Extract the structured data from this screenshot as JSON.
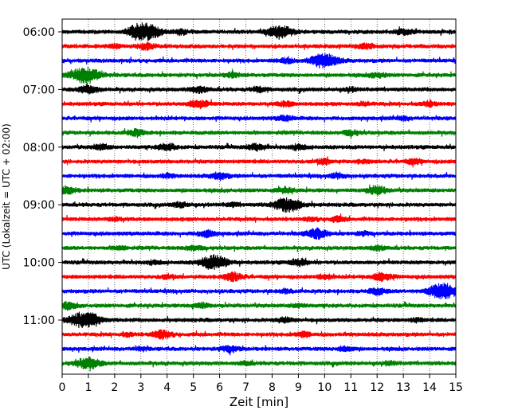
{
  "chart_data": {
    "type": "line",
    "title": "",
    "xlabel": "Zeit  [min]",
    "ylabel": "UTC (Lokalzeit = UTC + 02:00)",
    "xlim": [
      0,
      15
    ],
    "x_ticks": [
      0,
      1,
      2,
      3,
      4,
      5,
      6,
      7,
      8,
      9,
      10,
      11,
      12,
      13,
      14,
      15
    ],
    "y_tick_labels": [
      "06:00",
      "07:00",
      "08:00",
      "09:00",
      "10:00",
      "11:00"
    ],
    "grid": "vertical dotted lines at every minute",
    "legend": "none",
    "series_colors": [
      "#000000",
      "#ff0000",
      "#0000ff",
      "#008000"
    ],
    "traces": [
      {
        "start": "06:00",
        "events": [
          [
            3.2,
            1.0
          ],
          [
            8.3,
            0.8
          ],
          [
            2.8,
            0.4
          ],
          [
            4.5,
            0.3
          ],
          [
            13.0,
            0.3
          ]
        ]
      },
      {
        "start": "06:15",
        "events": [
          [
            3.2,
            0.4
          ],
          [
            11.5,
            0.3
          ],
          [
            2.0,
            0.2
          ]
        ]
      },
      {
        "start": "06:30",
        "events": [
          [
            10.0,
            0.9
          ],
          [
            8.5,
            0.3
          ]
        ]
      },
      {
        "start": "06:45",
        "events": [
          [
            0.9,
            1.0
          ],
          [
            6.5,
            0.3
          ],
          [
            12.0,
            0.3
          ]
        ]
      },
      {
        "start": "07:00",
        "events": [
          [
            1.0,
            0.5
          ],
          [
            5.2,
            0.4
          ],
          [
            7.5,
            0.3
          ],
          [
            11.0,
            0.2
          ]
        ]
      },
      {
        "start": "07:15",
        "events": [
          [
            5.2,
            0.5
          ],
          [
            8.5,
            0.3
          ],
          [
            14.0,
            0.3
          ],
          [
            11.5,
            0.2
          ]
        ]
      },
      {
        "start": "07:30",
        "events": [
          [
            8.5,
            0.3
          ],
          [
            13.0,
            0.2
          ]
        ]
      },
      {
        "start": "07:45",
        "events": [
          [
            2.8,
            0.4
          ],
          [
            11.0,
            0.3
          ]
        ]
      },
      {
        "start": "08:00",
        "events": [
          [
            4.0,
            0.4
          ],
          [
            7.4,
            0.4
          ],
          [
            9.0,
            0.3
          ],
          [
            1.5,
            0.3
          ]
        ]
      },
      {
        "start": "08:15",
        "events": [
          [
            10.0,
            0.3
          ],
          [
            13.4,
            0.3
          ],
          [
            11.5,
            0.2
          ]
        ]
      },
      {
        "start": "08:30",
        "events": [
          [
            6.0,
            0.4
          ],
          [
            10.5,
            0.3
          ],
          [
            4.0,
            0.2
          ]
        ]
      },
      {
        "start": "08:45",
        "events": [
          [
            12.0,
            0.5
          ],
          [
            0.2,
            0.4
          ],
          [
            8.5,
            0.3
          ]
        ]
      },
      {
        "start": "09:00",
        "events": [
          [
            8.6,
            0.9
          ],
          [
            4.5,
            0.3
          ],
          [
            6.5,
            0.2
          ]
        ]
      },
      {
        "start": "09:15",
        "events": [
          [
            10.5,
            0.3
          ],
          [
            9.5,
            0.2
          ],
          [
            2.0,
            0.2
          ]
        ]
      },
      {
        "start": "09:30",
        "events": [
          [
            9.7,
            0.6
          ],
          [
            5.5,
            0.4
          ],
          [
            11.5,
            0.2
          ]
        ]
      },
      {
        "start": "09:45",
        "events": [
          [
            5.0,
            0.3
          ],
          [
            12.0,
            0.3
          ],
          [
            2.2,
            0.2
          ]
        ]
      },
      {
        "start": "10:00",
        "events": [
          [
            5.8,
            0.9
          ],
          [
            9.0,
            0.4
          ],
          [
            3.5,
            0.2
          ]
        ]
      },
      {
        "start": "10:15",
        "events": [
          [
            6.5,
            0.5
          ],
          [
            12.2,
            0.5
          ],
          [
            10.0,
            0.3
          ],
          [
            4.0,
            0.2
          ]
        ]
      },
      {
        "start": "10:30",
        "events": [
          [
            14.5,
            1.0
          ],
          [
            12.0,
            0.4
          ],
          [
            8.5,
            0.2
          ]
        ]
      },
      {
        "start": "10:45",
        "events": [
          [
            0.2,
            0.4
          ],
          [
            5.3,
            0.3
          ],
          [
            9.0,
            0.2
          ]
        ]
      },
      {
        "start": "11:00",
        "events": [
          [
            0.7,
            0.8
          ],
          [
            8.5,
            0.3
          ],
          [
            1.2,
            0.5
          ],
          [
            13.5,
            0.2
          ]
        ]
      },
      {
        "start": "11:15",
        "events": [
          [
            3.8,
            0.5
          ],
          [
            9.2,
            0.3
          ],
          [
            2.5,
            0.2
          ]
        ]
      },
      {
        "start": "11:30",
        "events": [
          [
            6.4,
            0.4
          ],
          [
            10.8,
            0.3
          ],
          [
            3.0,
            0.2
          ]
        ]
      },
      {
        "start": "11:45",
        "events": [
          [
            1.0,
            0.7
          ],
          [
            12.5,
            0.2
          ],
          [
            7.0,
            0.2
          ]
        ]
      }
    ]
  }
}
